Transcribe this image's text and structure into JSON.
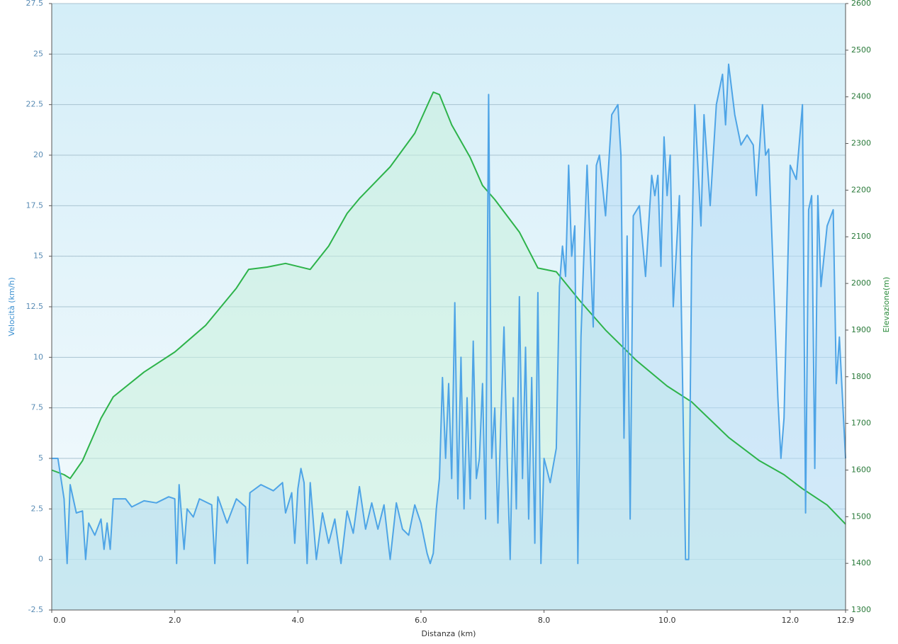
{
  "chart_data": {
    "type": "line",
    "x_label": "Distanza  (km)",
    "y_label": "Velocità (km/h)",
    "y2_label": "Elevazione(m)",
    "xlim": [
      0,
      12.9
    ],
    "xticks": [
      {
        "value": 0,
        "label": "0.0"
      },
      {
        "value": 2,
        "label": "2.0"
      },
      {
        "value": 4,
        "label": "4.0"
      },
      {
        "value": 6,
        "label": "6.0"
      },
      {
        "value": 8,
        "label": "8.0"
      },
      {
        "value": 10,
        "label": "10.0"
      },
      {
        "value": 12,
        "label": "12.0"
      },
      12.9
    ],
    "ylim": [
      -2.5,
      27.5
    ],
    "yticks": [
      -2.5,
      0,
      2.5,
      5,
      7.5,
      10,
      12.5,
      15,
      17.5,
      20,
      22.5,
      25,
      27.5
    ],
    "y2lim": [
      1300,
      2600
    ],
    "y2ticks": [
      1300,
      1400,
      1500,
      1600,
      1700,
      1800,
      1900,
      2000,
      2100,
      2200,
      2300,
      2400,
      2500,
      2600
    ],
    "grid": true,
    "series": [
      {
        "color": "#2db34a",
        "fill": "#c8f0dc",
        "axis": "y2",
        "x": [
          0,
          0.2,
          0.3,
          0.5,
          0.8,
          1.0,
          1.5,
          2.0,
          2.5,
          3.0,
          3.2,
          3.5,
          3.8,
          4.2,
          4.5,
          4.8,
          5.0,
          5.5,
          5.9,
          6.2,
          6.3,
          6.5,
          6.8,
          7.0,
          7.2,
          7.6,
          7.9,
          8.2,
          8.6,
          9.0,
          9.5,
          10.0,
          10.4,
          11.0,
          11.5,
          11.9,
          12.2,
          12.6,
          12.9
        ],
        "values": [
          1600,
          1590,
          1582,
          1620,
          1711,
          1757,
          1810,
          1853,
          1910,
          1990,
          2030,
          2035,
          2043,
          2030,
          2080,
          2150,
          2182,
          2250,
          2322,
          2410,
          2405,
          2340,
          2270,
          2210,
          2180,
          2110,
          2033,
          2025,
          1960,
          1900,
          1835,
          1780,
          1746,
          1670,
          1620,
          1590,
          1560,
          1525,
          1484
        ]
      },
      {
        "color": "#4ea4e6",
        "fill": "#b8dcf6",
        "axis": "y",
        "x": [
          0,
          0.1,
          0.2,
          0.25,
          0.3,
          0.4,
          0.5,
          0.55,
          0.6,
          0.7,
          0.8,
          0.85,
          0.9,
          0.95,
          1.0,
          1.2,
          1.3,
          1.5,
          1.7,
          1.9,
          2.0,
          2.03,
          2.07,
          2.15,
          2.2,
          2.3,
          2.4,
          2.6,
          2.65,
          2.7,
          2.85,
          3.0,
          3.15,
          3.18,
          3.22,
          3.4,
          3.6,
          3.75,
          3.8,
          3.9,
          3.95,
          4.0,
          4.05,
          4.1,
          4.15,
          4.2,
          4.3,
          4.4,
          4.5,
          4.6,
          4.7,
          4.8,
          4.9,
          5.0,
          5.1,
          5.2,
          5.3,
          5.4,
          5.5,
          5.6,
          5.7,
          5.8,
          5.9,
          6.0,
          6.1,
          6.15,
          6.2,
          6.25,
          6.3,
          6.35,
          6.4,
          6.45,
          6.5,
          6.55,
          6.6,
          6.65,
          6.7,
          6.75,
          6.8,
          6.85,
          6.9,
          6.95,
          7.0,
          7.05,
          7.1,
          7.15,
          7.2,
          7.25,
          7.3,
          7.35,
          7.4,
          7.45,
          7.5,
          7.55,
          7.6,
          7.65,
          7.7,
          7.75,
          7.8,
          7.85,
          7.9,
          7.95,
          8.0,
          8.1,
          8.2,
          8.25,
          8.3,
          8.35,
          8.4,
          8.45,
          8.5,
          8.55,
          8.6,
          8.7,
          8.8,
          8.85,
          8.9,
          9.0,
          9.1,
          9.2,
          9.25,
          9.3,
          9.35,
          9.4,
          9.45,
          9.55,
          9.65,
          9.75,
          9.8,
          9.85,
          9.9,
          9.95,
          10.0,
          10.05,
          10.1,
          10.2,
          10.3,
          10.35,
          10.4,
          10.45,
          10.55,
          10.6,
          10.7,
          10.8,
          10.9,
          10.95,
          11.0,
          11.1,
          11.2,
          11.3,
          11.4,
          11.45,
          11.55,
          11.6,
          11.65,
          11.8,
          11.85,
          11.9,
          12.0,
          12.1,
          12.2,
          12.25,
          12.3,
          12.35,
          12.4,
          12.45,
          12.5,
          12.6,
          12.7,
          12.75,
          12.8,
          12.9
        ],
        "values": [
          5,
          5,
          3,
          -0.2,
          3.7,
          2.3,
          2.4,
          0,
          1.8,
          1.2,
          2,
          0.5,
          1.8,
          0.5,
          3,
          3,
          2.6,
          2.9,
          2.8,
          3.1,
          3,
          -0.2,
          3.7,
          0.5,
          2.5,
          2.1,
          3,
          2.7,
          -0.2,
          3.1,
          1.8,
          3,
          2.6,
          -0.2,
          3.3,
          3.7,
          3.4,
          3.8,
          2.3,
          3.3,
          0.8,
          3.5,
          4.5,
          3.8,
          -0.2,
          3.8,
          0,
          2.3,
          0.8,
          2,
          -0.2,
          2.4,
          1.3,
          3.6,
          1.5,
          2.8,
          1.5,
          2.7,
          0,
          2.8,
          1.5,
          1.2,
          2.7,
          1.8,
          0.3,
          -0.2,
          0.3,
          2.5,
          4,
          9,
          5,
          8.7,
          4,
          12.7,
          3,
          10,
          2.5,
          8,
          3,
          10.8,
          4,
          5,
          8.7,
          2,
          23,
          5,
          7.5,
          1.8,
          7,
          11.5,
          5,
          0,
          8,
          2.5,
          13,
          4,
          10.5,
          2,
          9,
          0.8,
          13.2,
          -0.2,
          5,
          3.8,
          5.5,
          13.5,
          15.5,
          14,
          19.5,
          15,
          16.5,
          -0.2,
          11,
          19.5,
          11.5,
          19.5,
          20,
          17,
          22,
          22.5,
          20,
          6,
          16,
          2,
          17,
          17.5,
          14,
          19,
          18,
          19,
          14.5,
          20.9,
          18,
          20,
          12.5,
          18,
          0,
          0,
          15,
          22.5,
          16.5,
          22,
          17.5,
          22.5,
          24,
          21.5,
          24.5,
          22,
          20.5,
          21,
          20.5,
          18,
          22.5,
          20,
          20.3,
          8,
          5,
          7,
          19.5,
          18.8,
          22.5,
          2.3,
          17.3,
          18,
          4.5,
          18,
          13.5,
          16.5,
          17.3,
          8.7,
          11,
          5
        ]
      }
    ]
  }
}
